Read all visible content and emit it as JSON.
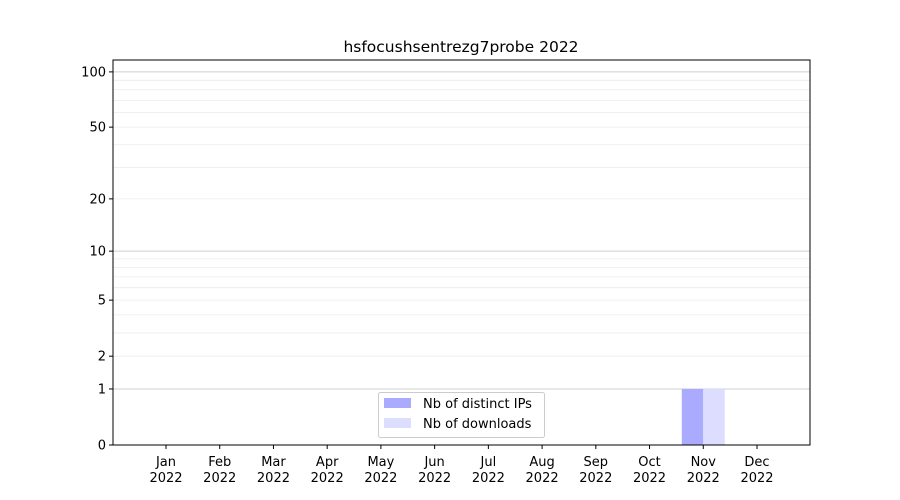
{
  "chart_data": {
    "type": "bar",
    "title": "hsfocushsentrezg7probe 2022",
    "xlabel": "",
    "ylabel": "",
    "yscale": "log(1+y)",
    "ylim": [
      0,
      116
    ],
    "yticks": [
      0,
      1,
      2,
      5,
      10,
      20,
      50,
      100
    ],
    "grid": true,
    "legend_position": "lower-center",
    "categories": [
      "Jan\n2022",
      "Feb\n2022",
      "Mar\n2022",
      "Apr\n2022",
      "May\n2022",
      "Jun\n2022",
      "Jul\n2022",
      "Aug\n2022",
      "Sep\n2022",
      "Oct\n2022",
      "Nov\n2022",
      "Dec\n2022"
    ],
    "series": [
      {
        "name": "Nb of distinct IPs",
        "color": "#aaaaff",
        "values": [
          0,
          0,
          0,
          0,
          0,
          0,
          0,
          0,
          0,
          0,
          1,
          0
        ]
      },
      {
        "name": "Nb of downloads",
        "color": "#ddddff",
        "values": [
          0,
          0,
          0,
          0,
          0,
          0,
          0,
          0,
          0,
          0,
          1,
          0
        ]
      }
    ]
  }
}
